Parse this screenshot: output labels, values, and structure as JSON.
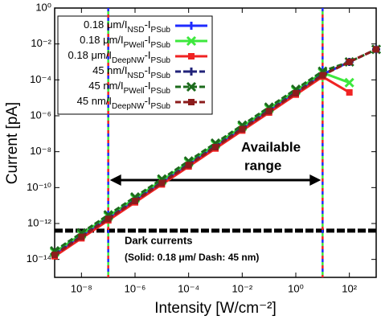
{
  "chart_data": {
    "type": "line",
    "x_label": "Intensity [W/cm⁻²]",
    "y_label": "Current [pA]",
    "log_x": true,
    "log_y": true,
    "x": [
      1e-09,
      1e-08,
      1e-07,
      1e-06,
      1e-05,
      0.0001,
      0.001,
      0.01,
      0.1,
      1,
      10,
      100,
      1000
    ],
    "xlim": [
      1e-09,
      1000.0
    ],
    "xticks": [
      {
        "value": 1e-08,
        "label": "10⁻⁸"
      },
      {
        "value": 1e-06,
        "label": "10⁻⁶"
      },
      {
        "value": 0.0001,
        "label": "10⁻⁴"
      },
      {
        "value": 0.01,
        "label": "10⁻²"
      },
      {
        "value": 1,
        "label": "10⁰"
      },
      {
        "value": 100,
        "label": "10²"
      }
    ],
    "ylim": [
      1e-15,
      1
    ],
    "yticks": [
      {
        "value": 1,
        "label": "10⁰"
      },
      {
        "value": 0.01,
        "label": "10⁻²"
      },
      {
        "value": 0.0001,
        "label": "10⁻⁴"
      },
      {
        "value": 1e-06,
        "label": "10⁻⁶"
      },
      {
        "value": 1e-08,
        "label": "10⁻⁸"
      },
      {
        "value": 1e-10,
        "label": "10⁻¹⁰"
      },
      {
        "value": 1e-12,
        "label": "10⁻¹²"
      },
      {
        "value": 1e-14,
        "label": "10⁻¹⁴"
      }
    ],
    "legend_position": "upper left",
    "series": [
      {
        "name": "0.18 μm/INSD-IPSub",
        "color": "#1f2bff",
        "marker": "plus",
        "dash": false,
        "values": [
          2e-14,
          2e-13,
          2e-12,
          2e-11,
          2e-10,
          2e-09,
          2e-08,
          2e-07,
          2e-06,
          2e-05,
          0.0002,
          0.001,
          null
        ]
      },
      {
        "name": "0.18 μm/IPWell-IPSub",
        "color": "#3de83d",
        "marker": "x",
        "dash": false,
        "values": [
          2.5e-14,
          2.5e-13,
          2.5e-12,
          2.5e-11,
          2.5e-10,
          2.5e-09,
          2.5e-08,
          2.5e-07,
          2.5e-06,
          2.5e-05,
          0.00025,
          7e-05,
          null
        ]
      },
      {
        "name": "0.18 μm/IDeepNW-IPSub",
        "color": "#f02323",
        "marker": "square",
        "dash": false,
        "values": [
          1.5e-14,
          1.5e-13,
          1.5e-12,
          1.5e-11,
          1.5e-10,
          1.5e-09,
          1.5e-08,
          1.5e-07,
          1.5e-06,
          1.5e-05,
          0.00015,
          2e-05,
          null
        ]
      },
      {
        "name": "45 nm/INSD-IPSub",
        "color": "#22237a",
        "marker": "plus",
        "dash": true,
        "values": [
          2e-14,
          2e-13,
          2e-12,
          2e-11,
          2e-10,
          2e-09,
          2e-08,
          2e-07,
          2e-06,
          2e-05,
          0.0002,
          0.001,
          0.005
        ]
      },
      {
        "name": "45 nm/IPWell-IPSub",
        "color": "#1c6b1c",
        "marker": "x",
        "dash": true,
        "values": [
          3e-14,
          3e-13,
          3e-12,
          3e-11,
          3e-10,
          3e-09,
          3e-08,
          3e-07,
          3e-06,
          3e-05,
          0.0003,
          0.001,
          0.005
        ]
      },
      {
        "name": "45 nm/IDeepNW-IPSub",
        "color": "#8c1c1c",
        "marker": "square",
        "dash": true,
        "values": [
          1.8e-14,
          1.8e-13,
          1.8e-12,
          1.8e-11,
          1.8e-10,
          1.8e-09,
          1.8e-08,
          1.8e-07,
          1.8e-06,
          1.8e-05,
          0.00018,
          0.001,
          0.005
        ]
      }
    ],
    "vertical_lines": [
      1e-07,
      10
    ],
    "dark_current": 4e-13,
    "annotations": [
      "Available",
      "range",
      "Dark currents",
      "(Solid: 0.18 μm/ Dash: 45 nm)"
    ]
  }
}
